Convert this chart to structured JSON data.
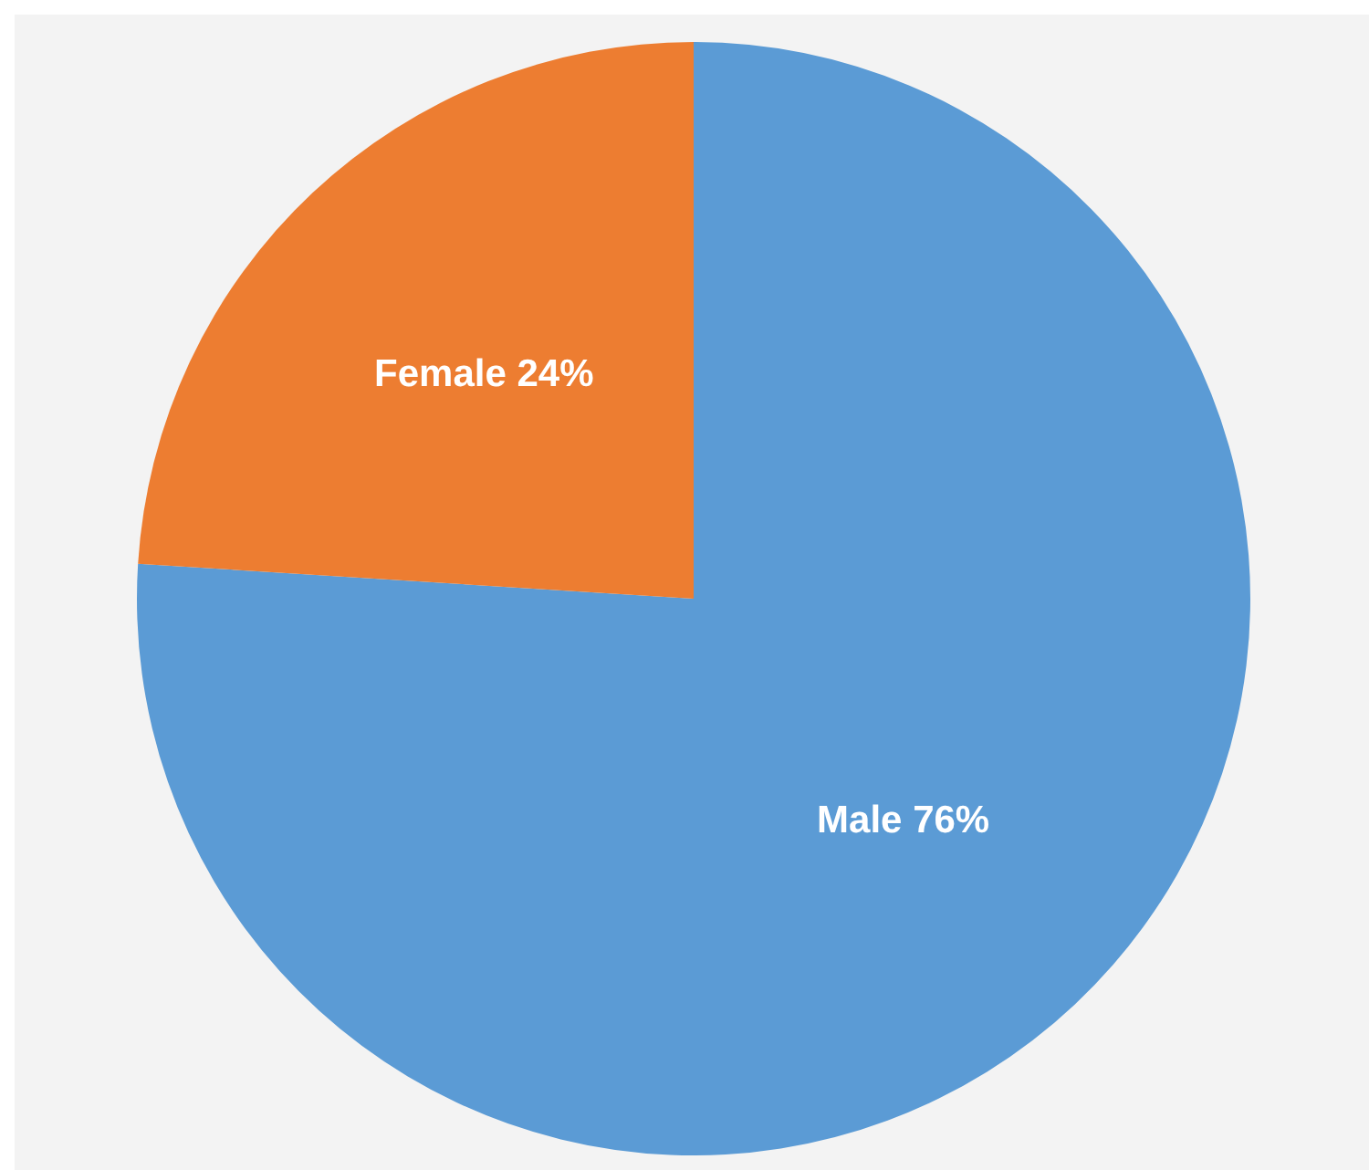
{
  "chart_data": {
    "type": "pie",
    "categories": [
      "Male",
      "Female"
    ],
    "values": [
      76,
      24
    ],
    "colors": [
      "#5b9bd5",
      "#ed7d31"
    ],
    "value_labels": [
      "76%",
      "24%"
    ]
  }
}
